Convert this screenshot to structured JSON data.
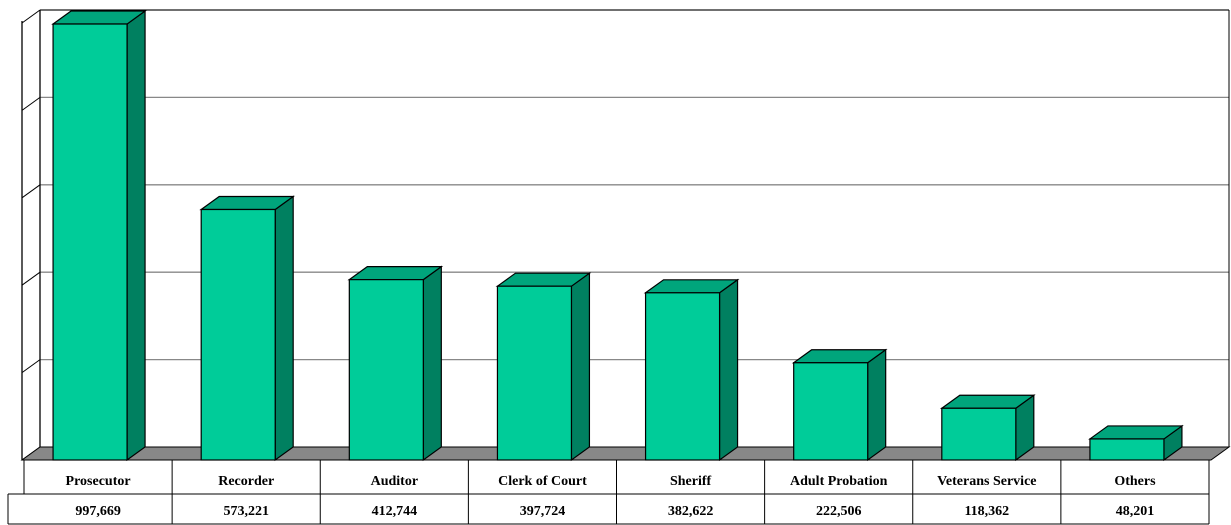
{
  "chart_data": {
    "type": "bar",
    "title": "",
    "xlabel": "",
    "ylabel": "",
    "categories": [
      "Prosecutor",
      "Recorder",
      "Auditor",
      "Clerk of Court",
      "Sheriff",
      "Adult Probation",
      "Veterans Service",
      "Others"
    ],
    "value_labels": [
      "997,669",
      "573,221",
      "412,744",
      "397,724",
      "382,622",
      "222,506",
      "118,362",
      "48,201"
    ],
    "values": [
      997669,
      573221,
      412744,
      397724,
      382622,
      222506,
      118362,
      48201
    ],
    "ylim": [
      0,
      1000000
    ],
    "y_gridlines": [
      0,
      200000,
      400000,
      600000,
      800000,
      1000000
    ],
    "grid": true,
    "three_d": true,
    "data_table_below": true,
    "legend": "none",
    "colors": {
      "bar_front": "#00cc99",
      "bar_side": "#008060",
      "bar_top": "#00a57c",
      "floor": "#888888",
      "gridline": "#888888",
      "outline": "#000000"
    }
  }
}
